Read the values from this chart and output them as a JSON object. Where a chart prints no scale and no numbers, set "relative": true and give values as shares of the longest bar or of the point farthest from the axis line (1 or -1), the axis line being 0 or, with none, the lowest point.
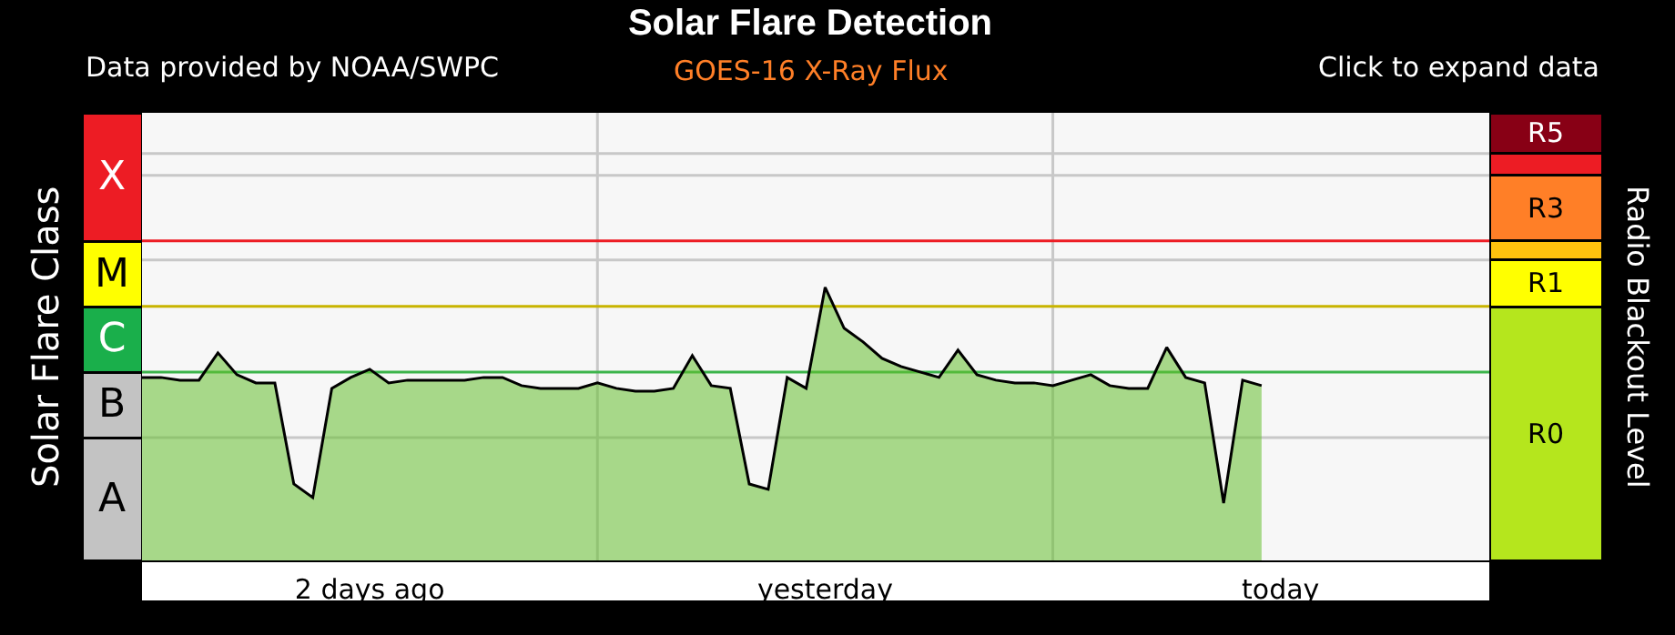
{
  "chart_data": [
    {
      "type": "bar",
      "stacked": true,
      "relative": true,
      "ylabel": "Solar Flare Class",
      "categories": [
        null
      ],
      "tick_labels": false,
      "legend": false,
      "series": [
        {
          "name": "A",
          "color": "#c3c3c3",
          "values": [
            0.274
          ]
        },
        {
          "name": "B",
          "color": "#c3c3c3",
          "values": [
            0.146
          ]
        },
        {
          "name": "C",
          "color": "#1aaf4b",
          "values": [
            0.146
          ]
        },
        {
          "name": "M",
          "color": "#ffff00",
          "values": [
            0.146
          ]
        },
        {
          "name": "X",
          "color": "#ed1c24",
          "values": [
            0.288
          ]
        }
      ]
    },
    {
      "type": "area",
      "title": "Solar Flare Detection",
      "subtitle": "GOES-16 X-Ray Flux",
      "annotations": [
        "Data provided by NOAA/SWPC",
        "Click to expand data"
      ],
      "categories": [
        null,
        null,
        null,
        null,
        null,
        null,
        null,
        null,
        null,
        null,
        null,
        null,
        "2 days ago",
        null,
        null,
        null,
        null,
        null,
        null,
        null,
        null,
        null,
        null,
        null,
        null,
        null,
        null,
        null,
        null,
        null,
        null,
        null,
        null,
        null,
        null,
        null,
        "yesterday",
        null,
        null,
        null,
        null,
        null,
        null,
        null,
        null,
        null,
        null,
        null,
        null,
        null,
        null,
        null,
        null,
        null,
        null,
        null,
        null,
        null,
        null,
        null,
        "today",
        null,
        null,
        null,
        null,
        null,
        null,
        null,
        null,
        null,
        null,
        null
      ],
      "relative": true,
      "grid": "x",
      "legend": false,
      "tick_labels": "x",
      "marker": "none",
      "line_style": "solid",
      "series": [
        {
          "color": "#66c030",
          "values": [
            0.67,
            0.67,
            0.66,
            0.66,
            0.76,
            0.68,
            0.65,
            0.65,
            0.28,
            0.23,
            0.63,
            0.67,
            0.7,
            0.65,
            0.66,
            0.66,
            0.66,
            0.66,
            0.67,
            0.67,
            0.64,
            0.63,
            0.63,
            0.63,
            0.65,
            0.63,
            0.62,
            0.62,
            0.63,
            0.75,
            0.64,
            0.63,
            0.28,
            0.26,
            0.67,
            0.63,
            1,
            0.85,
            0.8,
            0.74,
            0.71,
            0.69,
            0.67,
            0.77,
            0.68,
            0.66,
            0.65,
            0.65,
            0.64,
            0.66,
            0.68,
            0.64,
            0.63,
            0.63,
            0.78,
            0.67,
            0.65,
            0.21,
            0.66,
            0.64,
            null,
            null,
            null,
            null,
            null,
            null,
            null,
            null,
            null,
            null,
            null,
            null
          ]
        }
      ],
      "ref_lines": [
        {
          "axis": "y",
          "value": 1.17,
          "color": "#ed1c24",
          "line_style": "solid"
        },
        {
          "axis": "y",
          "value": 0.93,
          "color": "#c8b400",
          "line_style": "solid"
        },
        {
          "axis": "y",
          "value": 0.69,
          "color": "#3cb44b",
          "line_style": "solid"
        },
        {
          "axis": "y",
          "value": 1.49,
          "color": "#c8c8c8",
          "line_style": "solid"
        },
        {
          "axis": "y",
          "value": 1.41,
          "color": "#c8c8c8",
          "line_style": "solid"
        },
        {
          "axis": "y",
          "value": 1.1,
          "color": "#c8c8c8",
          "line_style": "solid"
        },
        {
          "axis": "y",
          "value": 0.45,
          "color": "#c8c8c8",
          "line_style": "solid"
        }
      ]
    },
    {
      "type": "bar",
      "stacked": true,
      "relative": true,
      "ylabel": "Radio Blackout Level",
      "categories": [
        null
      ],
      "tick_labels": false,
      "legend": false,
      "series": [
        {
          "name": "R0",
          "color": "#b5e61d",
          "values": [
            0.567
          ]
        },
        {
          "name": "R1",
          "color": "#ffff00",
          "values": [
            0.104
          ]
        },
        {
          "color": "#ffc20e",
          "values": [
            0.043
          ]
        },
        {
          "name": "R3",
          "color": "#ff7f27",
          "values": [
            0.146
          ]
        },
        {
          "color": "#ed1c24",
          "values": [
            0.049
          ]
        },
        {
          "name": "R5",
          "color": "#880015",
          "values": [
            0.091
          ]
        }
      ]
    }
  ]
}
